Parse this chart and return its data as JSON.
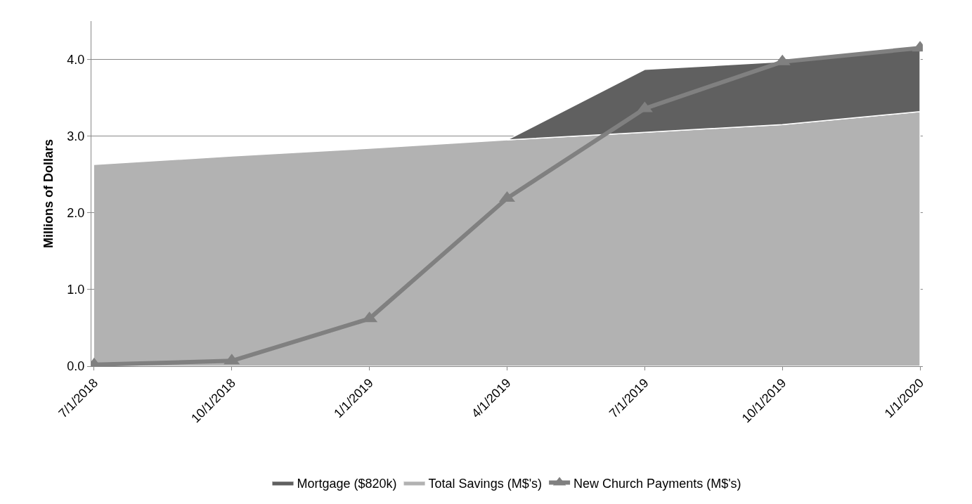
{
  "chart_data": {
    "type": "area",
    "ylabel": "Millions of Dollars",
    "categories": [
      "7/1/2018",
      "10/1/2018",
      "1/1/2019",
      "4/1/2019",
      "7/1/2019",
      "10/1/2019",
      "1/1/2020"
    ],
    "series": [
      {
        "name": "Mortgage ($820k)",
        "color": "#606060",
        "values": [
          null,
          null,
          null,
          0,
          0.82,
          0.82,
          0.82
        ]
      },
      {
        "name": "Total Savings (M$'s)",
        "color": "#b2b2b2",
        "values": [
          2.63,
          2.74,
          2.84,
          2.95,
          3.05,
          3.15,
          3.32
        ]
      },
      {
        "name": "New Church Payments (M$'s)",
        "color": "#808080",
        "type": "line",
        "marker": "triangle",
        "line_style": "solid",
        "values": [
          0.02,
          0.07,
          0.62,
          2.19,
          3.36,
          3.97,
          4.15
        ]
      }
    ],
    "stacked": true,
    "ylim": [
      0,
      4.5
    ],
    "yticks": [
      {
        "value": 0,
        "label": "0.0"
      },
      {
        "value": 1,
        "label": "1.0"
      },
      {
        "value": 2,
        "label": "2.0"
      },
      {
        "value": 3,
        "label": "3.0"
      },
      {
        "value": 4,
        "label": "4.0"
      }
    ],
    "grid": "y",
    "legend": "bottom"
  }
}
